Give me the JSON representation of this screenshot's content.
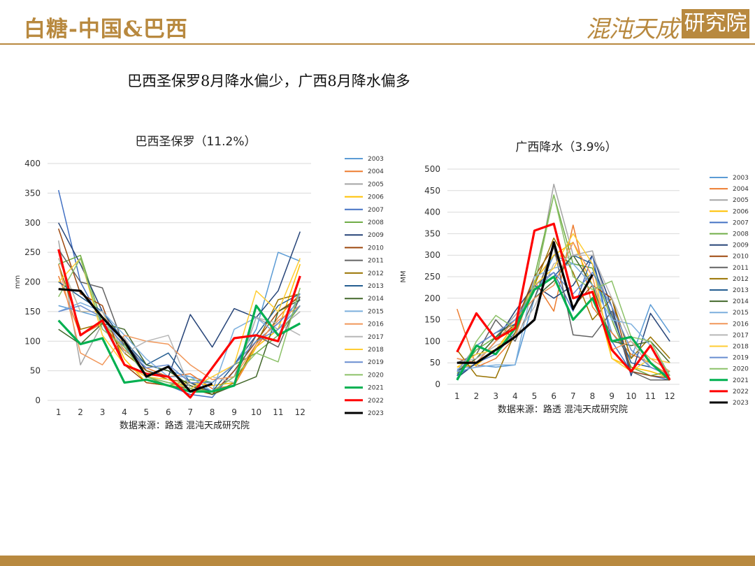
{
  "header": {
    "title": "白糖-中国&巴西",
    "logo_text": "混沌天成",
    "logo_badge": "研究院"
  },
  "main_title": "巴西圣保罗8月降水偏少，广西8月降水偏多",
  "colors": {
    "2003": "#5b9bd5",
    "2004": "#ed7d31",
    "2005": "#a5a5a5",
    "2006": "#ffc000",
    "2007": "#4472c4",
    "2008": "#70ad47",
    "2009": "#264478",
    "2010": "#9e480e",
    "2011": "#636363",
    "2012": "#997300",
    "2013": "#255e91",
    "2014": "#43682b",
    "2015": "#7cafdd",
    "2016": "#f1975a",
    "2017": "#b7b7b7",
    "2018": "#ffcd33",
    "2019": "#698ed0",
    "2020": "#8cc168",
    "2021": "#00b050",
    "2022": "#ff0000",
    "2023": "#000000"
  },
  "chart_data": [
    {
      "type": "line",
      "title": "巴西圣保罗（11.2%）",
      "ylabel": "mm",
      "xlabel": "",
      "source": "数据来源：路透 混沌天成研究院",
      "ylim": [
        0,
        400
      ],
      "yticks": [
        "0",
        "50",
        "100",
        "150",
        "200",
        "250",
        "300",
        "350",
        "400"
      ],
      "x": [
        "1",
        "2",
        "3",
        "4",
        "5",
        "6",
        "7",
        "8",
        "9",
        "10",
        "11",
        "12"
      ],
      "legend_position": "right",
      "series": [
        {
          "name": "2003",
          "values": [
            160,
            150,
            140,
            90,
            60,
            50,
            40,
            30,
            60,
            120,
            250,
            235
          ]
        },
        {
          "name": "2004",
          "values": [
            210,
            110,
            130,
            85,
            55,
            40,
            45,
            20,
            25,
            90,
            140,
            180
          ]
        },
        {
          "name": "2005",
          "values": [
            270,
            60,
            130,
            105,
            50,
            35,
            20,
            15,
            40,
            140,
            120,
            150
          ]
        },
        {
          "name": "2006",
          "values": [
            240,
            150,
            150,
            70,
            30,
            25,
            30,
            25,
            30,
            90,
            120,
            230
          ]
        },
        {
          "name": "2007",
          "values": [
            355,
            200,
            130,
            60,
            40,
            25,
            10,
            5,
            50,
            100,
            130,
            170
          ]
        },
        {
          "name": "2008",
          "values": [
            230,
            245,
            130,
            95,
            40,
            25,
            35,
            30,
            60,
            80,
            110,
            160
          ]
        },
        {
          "name": "2009",
          "values": [
            300,
            230,
            150,
            100,
            50,
            40,
            145,
            90,
            155,
            140,
            185,
            285
          ]
        },
        {
          "name": "2010",
          "values": [
            290,
            180,
            160,
            60,
            30,
            25,
            20,
            10,
            50,
            100,
            150,
            175
          ]
        },
        {
          "name": "2011",
          "values": [
            255,
            200,
            190,
            90,
            40,
            30,
            25,
            15,
            40,
            110,
            90,
            175
          ]
        },
        {
          "name": "2012",
          "values": [
            230,
            120,
            130,
            80,
            50,
            35,
            30,
            10,
            30,
            95,
            170,
            180
          ]
        },
        {
          "name": "2013",
          "values": [
            200,
            175,
            150,
            100,
            60,
            80,
            30,
            15,
            60,
            110,
            160,
            180
          ]
        },
        {
          "name": "2014",
          "values": [
            120,
            95,
            130,
            120,
            60,
            50,
            25,
            10,
            25,
            40,
            150,
            170
          ]
        },
        {
          "name": "2015",
          "values": [
            150,
            165,
            150,
            110,
            70,
            40,
            40,
            15,
            120,
            140,
            110,
            180
          ]
        },
        {
          "name": "2016",
          "values": [
            230,
            80,
            60,
            110,
            100,
            95,
            60,
            35,
            40,
            95,
            135,
            160
          ]
        },
        {
          "name": "2017",
          "values": [
            240,
            150,
            150,
            80,
            100,
            110,
            20,
            40,
            30,
            140,
            130,
            110
          ]
        },
        {
          "name": "2018",
          "values": [
            200,
            240,
            110,
            60,
            40,
            35,
            20,
            40,
            60,
            185,
            150,
            240
          ]
        },
        {
          "name": "2019",
          "values": [
            150,
            160,
            140,
            90,
            55,
            60,
            30,
            30,
            60,
            100,
            120,
            160
          ]
        },
        {
          "name": "2020",
          "values": [
            175,
            240,
            120,
            90,
            40,
            30,
            20,
            15,
            40,
            80,
            65,
            190
          ]
        },
        {
          "name": "2021",
          "values": [
            135,
            95,
            105,
            30,
            35,
            25,
            15,
            15,
            25,
            160,
            110,
            130
          ]
        },
        {
          "name": "2022",
          "values": [
            255,
            110,
            135,
            60,
            45,
            40,
            5,
            55,
            105,
            110,
            100,
            210
          ]
        },
        {
          "name": "2023",
          "values": [
            188,
            185,
            140,
            100,
            40,
            57,
            15,
            28,
            null,
            null,
            null,
            null
          ]
        }
      ]
    },
    {
      "type": "line",
      "title": "广西降水（3.9%）",
      "ylabel": "MM",
      "xlabel": "",
      "source": "数据来源：路透 混沌天成研究院",
      "ylim": [
        0,
        500
      ],
      "yticks": [
        "0",
        "50",
        "100",
        "150",
        "200",
        "250",
        "300",
        "350",
        "400",
        "450",
        "500"
      ],
      "x": [
        "1",
        "2",
        "3",
        "4",
        "5",
        "6",
        "7",
        "8",
        "9",
        "10",
        "11",
        "12"
      ],
      "legend_position": "right",
      "series": [
        {
          "name": "2003",
          "values": [
            35,
            45,
            40,
            45,
            200,
            300,
            280,
            270,
            120,
            60,
            185,
            120
          ]
        },
        {
          "name": "2004",
          "values": [
            175,
            40,
            60,
            110,
            240,
            170,
            370,
            180,
            120,
            70,
            50,
            20
          ]
        },
        {
          "name": "2005",
          "values": [
            30,
            60,
            110,
            160,
            220,
            465,
            300,
            310,
            150,
            40,
            20,
            30
          ]
        },
        {
          "name": "2006",
          "values": [
            40,
            45,
            80,
            140,
            240,
            300,
            330,
            230,
            60,
            40,
            30,
            15
          ]
        },
        {
          "name": "2007",
          "values": [
            20,
            50,
            70,
            120,
            230,
            260,
            170,
            300,
            100,
            30,
            20,
            10
          ]
        },
        {
          "name": "2008",
          "values": [
            25,
            80,
            110,
            130,
            250,
            440,
            280,
            270,
            150,
            40,
            20,
            30
          ]
        },
        {
          "name": "2009",
          "values": [
            15,
            50,
            100,
            170,
            230,
            200,
            230,
            300,
            180,
            20,
            165,
            100
          ]
        },
        {
          "name": "2010",
          "values": [
            60,
            50,
            100,
            140,
            250,
            320,
            180,
            230,
            200,
            30,
            20,
            15
          ]
        },
        {
          "name": "2011",
          "values": [
            50,
            70,
            150,
            100,
            200,
            320,
            115,
            110,
            170,
            30,
            10,
            10
          ]
        },
        {
          "name": "2012",
          "values": [
            80,
            20,
            15,
            120,
            230,
            340,
            260,
            150,
            200,
            60,
            110,
            60
          ]
        },
        {
          "name": "2013",
          "values": [
            20,
            90,
            120,
            140,
            220,
            250,
            300,
            280,
            160,
            50,
            40,
            20
          ]
        },
        {
          "name": "2014",
          "values": [
            30,
            60,
            110,
            150,
            200,
            240,
            300,
            230,
            100,
            90,
            100,
            50
          ]
        },
        {
          "name": "2015",
          "values": [
            30,
            40,
            45,
            45,
            250,
            270,
            280,
            230,
            150,
            140,
            90,
            20
          ]
        },
        {
          "name": "2016",
          "values": [
            60,
            50,
            100,
            150,
            200,
            230,
            330,
            250,
            80,
            100,
            60,
            30
          ]
        },
        {
          "name": "2017",
          "values": [
            50,
            60,
            90,
            110,
            180,
            280,
            300,
            300,
            200,
            100,
            40,
            20
          ]
        },
        {
          "name": "2018",
          "values": [
            40,
            70,
            80,
            130,
            230,
            270,
            350,
            280,
            60,
            30,
            60,
            50
          ]
        },
        {
          "name": "2019",
          "values": [
            30,
            90,
            120,
            150,
            220,
            260,
            210,
            260,
            180,
            80,
            40,
            20
          ]
        },
        {
          "name": "2020",
          "values": [
            10,
            100,
            160,
            130,
            230,
            440,
            250,
            220,
            240,
            110,
            100,
            20
          ]
        },
        {
          "name": "2021",
          "values": [
            10,
            90,
            70,
            130,
            220,
            250,
            150,
            200,
            100,
            110,
            50,
            10
          ]
        },
        {
          "name": "2022",
          "values": [
            75,
            165,
            105,
            130,
            357,
            373,
            200,
            215,
            80,
            30,
            90,
            10
          ]
        },
        {
          "name": "2023",
          "values": [
            50,
            50,
            80,
            110,
            150,
            330,
            175,
            255,
            null,
            null,
            null,
            null
          ]
        }
      ]
    }
  ]
}
